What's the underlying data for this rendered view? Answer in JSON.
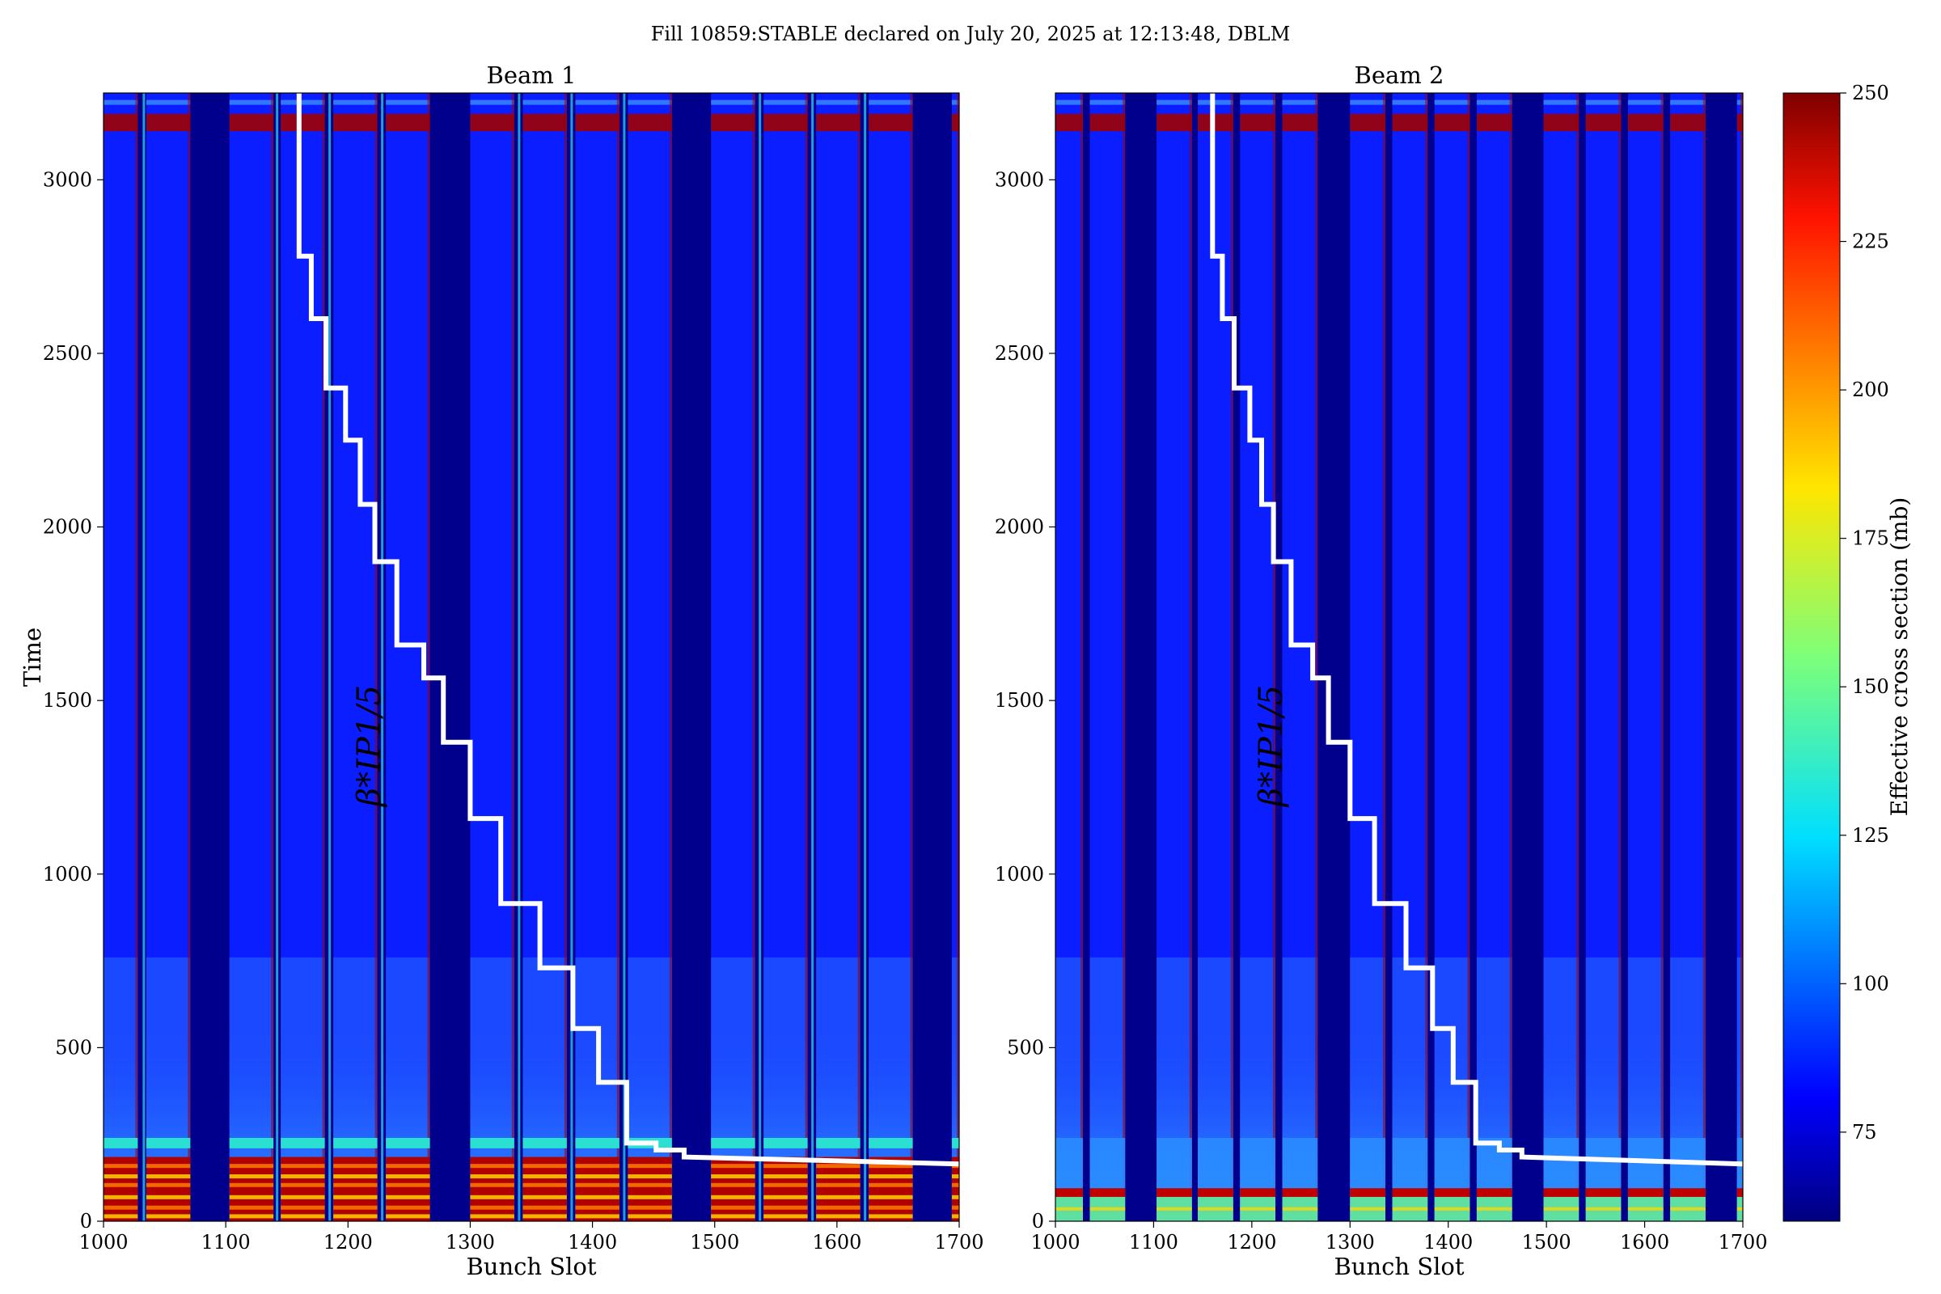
{
  "figure": {
    "title": "Fill 10859:STABLE declared on July 20, 2025 at 12:13:48, DBLM"
  },
  "chart_data": [
    {
      "type": "heatmap",
      "title": "Beam 1",
      "xlabel": "Bunch Slot",
      "ylabel": "Time",
      "xlim": [
        1000,
        1700
      ],
      "ylim": [
        0,
        3250
      ],
      "xticks": [
        "1000",
        "1100",
        "1200",
        "1300",
        "1400",
        "1500",
        "1600",
        "1700"
      ],
      "yticks": [
        "0",
        "500",
        "1000",
        "1500",
        "2000",
        "2500",
        "3000"
      ],
      "filled_bunch_ranges": [
        [
          1000,
          1028
        ],
        [
          1035,
          1071
        ],
        [
          1103,
          1139
        ],
        [
          1145,
          1181
        ],
        [
          1188,
          1224
        ],
        [
          1231,
          1267
        ],
        [
          1300,
          1336
        ],
        [
          1343,
          1379
        ],
        [
          1386,
          1422
        ],
        [
          1429,
          1465
        ],
        [
          1497,
          1533
        ],
        [
          1540,
          1576
        ],
        [
          1583,
          1619
        ],
        [
          1626,
          1662
        ],
        [
          1694,
          1700
        ]
      ],
      "bright_columns": [
        1033,
        1142,
        1185,
        1228,
        1340,
        1383,
        1426,
        1537,
        1580,
        1623
      ],
      "beta_star_label": "β*IP1/5",
      "beta_star_staircase": {
        "x": [
          1160,
          1160,
          1170,
          1170,
          1182,
          1182,
          1198,
          1198,
          1210,
          1210,
          1222,
          1222,
          1240,
          1240,
          1262,
          1262,
          1278,
          1278,
          1300,
          1300,
          1325,
          1325,
          1357,
          1357,
          1384,
          1384,
          1405,
          1405,
          1428,
          1428,
          1452,
          1452,
          1475,
          1475,
          1700
        ],
        "y": [
          3250,
          2780,
          2780,
          2600,
          2600,
          2400,
          2400,
          2250,
          2250,
          2065,
          2065,
          1900,
          1900,
          1660,
          1660,
          1565,
          1565,
          1380,
          1380,
          1160,
          1160,
          915,
          915,
          730,
          730,
          555,
          555,
          400,
          400,
          225,
          225,
          205,
          205,
          185,
          165
        ]
      }
    },
    {
      "type": "heatmap",
      "title": "Beam 2",
      "xlabel": "Bunch Slot",
      "ylabel": "",
      "xlim": [
        1000,
        1700
      ],
      "ylim": [
        0,
        3250
      ],
      "xticks": [
        "1000",
        "1100",
        "1200",
        "1300",
        "1400",
        "1500",
        "1600",
        "1700"
      ],
      "yticks": [
        "0",
        "500",
        "1000",
        "1500",
        "2000",
        "2500",
        "3000"
      ],
      "filled_bunch_ranges": [
        [
          1000,
          1028
        ],
        [
          1035,
          1071
        ],
        [
          1103,
          1139
        ],
        [
          1145,
          1181
        ],
        [
          1188,
          1224
        ],
        [
          1231,
          1267
        ],
        [
          1300,
          1336
        ],
        [
          1343,
          1379
        ],
        [
          1386,
          1422
        ],
        [
          1429,
          1465
        ],
        [
          1497,
          1533
        ],
        [
          1540,
          1576
        ],
        [
          1583,
          1619
        ],
        [
          1626,
          1662
        ],
        [
          1694,
          1700
        ]
      ],
      "beta_star_label": "β*IP1/5",
      "beta_star_staircase": {
        "x": [
          1160,
          1160,
          1170,
          1170,
          1182,
          1182,
          1198,
          1198,
          1210,
          1210,
          1222,
          1222,
          1240,
          1240,
          1262,
          1262,
          1278,
          1278,
          1300,
          1300,
          1325,
          1325,
          1357,
          1357,
          1384,
          1384,
          1405,
          1405,
          1428,
          1428,
          1452,
          1452,
          1475,
          1475,
          1700
        ],
        "y": [
          3250,
          2780,
          2780,
          2600,
          2600,
          2400,
          2400,
          2250,
          2250,
          2065,
          2065,
          1900,
          1900,
          1660,
          1660,
          1565,
          1565,
          1380,
          1380,
          1160,
          1160,
          915,
          915,
          730,
          730,
          555,
          555,
          400,
          400,
          225,
          225,
          205,
          205,
          185,
          165
        ]
      }
    }
  ],
  "colorbar": {
    "label": "Effective cross section (mb)",
    "range": [
      60,
      250
    ],
    "ticks": [
      "75",
      "100",
      "125",
      "150",
      "175",
      "200",
      "225",
      "250"
    ],
    "colormap": "jet"
  },
  "colors": {
    "empty": "#00008c",
    "filled": "#0a1eff",
    "bright_edge": "#2ad4f0",
    "hot": "#9e0000",
    "staircase": "#ffffff"
  }
}
